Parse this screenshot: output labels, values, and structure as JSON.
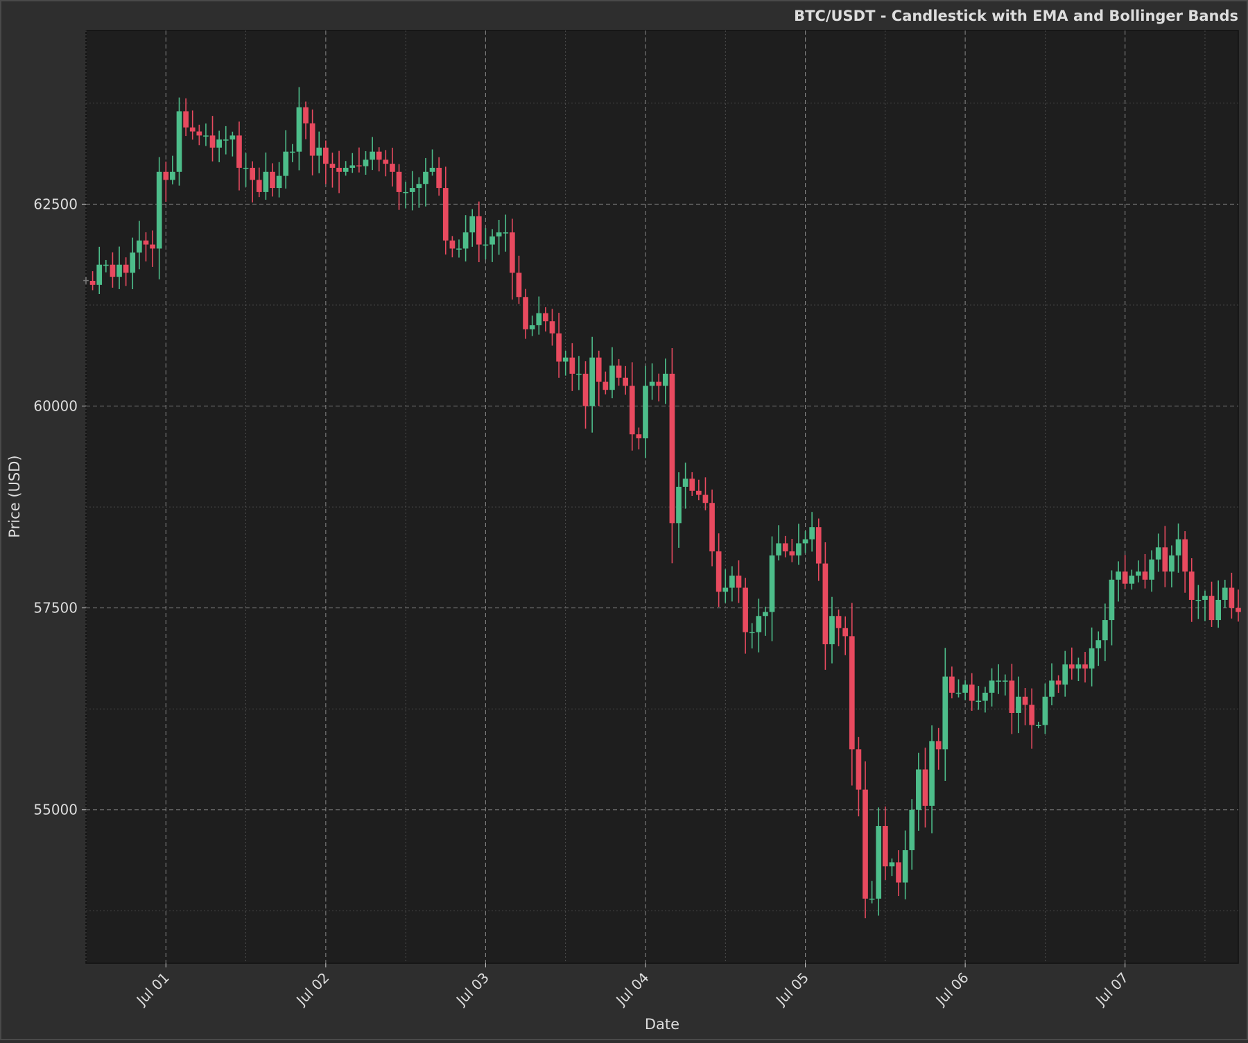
{
  "chart_data": {
    "type": "candlestick",
    "title": "BTC/USDT - Candlestick with EMA and Bollinger Bands",
    "xlabel": "Date",
    "ylabel": "Price (USD)",
    "x_ticks": [
      "Jul 01",
      "Jul 02",
      "Jul 03",
      "Jul 04",
      "Jul 05",
      "Jul 06",
      "Jul 07"
    ],
    "y_ticks": [
      55000,
      57500,
      60000,
      62500
    ],
    "ylim": [
      53100,
      64650
    ],
    "xlim": [
      "2024-06-30 12:00",
      "2024-07-07 17:00"
    ],
    "grid": true,
    "candle_interval_hours": 1,
    "first_candle": "2024-06-30 12:00",
    "colors": {
      "up": "#4dbd8a",
      "down": "#e84a5f",
      "background": "#1e1e1e",
      "figure": "#2e2e2e",
      "text": "#dddddd",
      "grid": "#8a8a8a"
    },
    "close": [
      61550,
      61500,
      61750,
      61750,
      61600,
      61750,
      61650,
      61900,
      62050,
      62000,
      61950,
      62900,
      62800,
      62900,
      63650,
      63450,
      63400,
      63350,
      63350,
      63200,
      63300,
      63300,
      63350,
      62950,
      62950,
      62800,
      62650,
      62900,
      62700,
      62850,
      63150,
      63150,
      63700,
      63500,
      63100,
      63200,
      63000,
      62950,
      62900,
      62950,
      62980,
      62970,
      63050,
      63150,
      63050,
      63000,
      62900,
      62650,
      62650,
      62700,
      62750,
      62900,
      62950,
      62700,
      62050,
      61950,
      61950,
      62150,
      62350,
      62000,
      62000,
      62100,
      62150,
      62150,
      61650,
      61350,
      60950,
      61000,
      61150,
      61050,
      60900,
      60550,
      60600,
      60400,
      60400,
      60000,
      60600,
      60300,
      60200,
      60500,
      60350,
      60250,
      59650,
      59600,
      60250,
      60300,
      60250,
      60400,
      58550,
      59000,
      59100,
      58950,
      58900,
      58800,
      58200,
      57700,
      57750,
      57900,
      57750,
      57200,
      57200,
      57400,
      57450,
      58150,
      58300,
      58200,
      58150,
      58300,
      58350,
      58500,
      58050,
      57050,
      57400,
      57250,
      57150,
      55750,
      55250,
      53900,
      53900,
      54800,
      54300,
      54350,
      54100,
      54500,
      55000,
      55500,
      55050,
      55850,
      55750,
      56650,
      56450,
      56450,
      56550,
      56350,
      56350,
      56450,
      56600,
      56600,
      56600,
      56200,
      56400,
      56300,
      56050,
      56050,
      56400,
      56600,
      56550,
      56800,
      56750,
      56800,
      56750,
      57000,
      57100,
      57350,
      57850,
      57950,
      57800,
      57900,
      57950,
      57850,
      58100,
      58250,
      57950,
      58150,
      58350,
      57950,
      57600,
      57600,
      57650,
      57350,
      57600,
      57750,
      57500,
      57450
    ]
  }
}
